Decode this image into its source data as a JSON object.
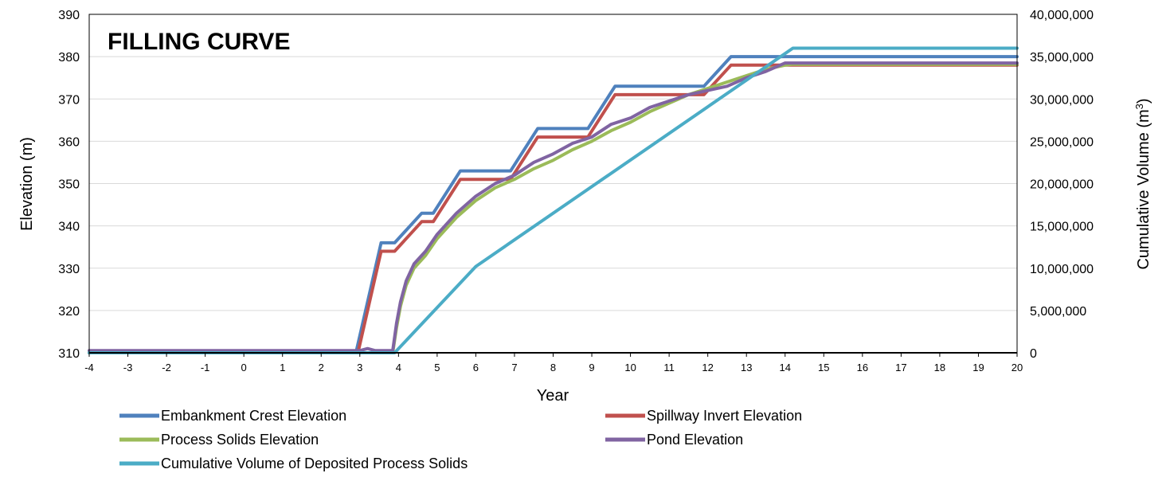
{
  "chart_data": {
    "type": "line",
    "title": "FILLING CURVE",
    "xlabel": "Year",
    "ylabel": "Elevation (m)",
    "y2label": "Cumulative Volume (m",
    "y2label_sup": "3",
    "y2label_end": ")",
    "xlim": [
      -4,
      20
    ],
    "ylim": [
      310,
      390
    ],
    "y2lim": [
      0,
      40000000
    ],
    "x_ticks": [
      "-4",
      "-3",
      "-2",
      "-1",
      "0",
      "1",
      "2",
      "3",
      "4",
      "5",
      "6",
      "7",
      "8",
      "9",
      "10",
      "11",
      "12",
      "13",
      "14",
      "15",
      "16",
      "17",
      "18",
      "19",
      "20"
    ],
    "y_ticks": [
      "310",
      "320",
      "330",
      "340",
      "350",
      "360",
      "370",
      "380",
      "390"
    ],
    "y2_ticks": [
      "0",
      "5,000,000",
      "10,000,000",
      "15,000,000",
      "20,000,000",
      "25,000,000",
      "30,000,000",
      "35,000,000",
      "40,000,000"
    ],
    "grid": "horizontal",
    "legend_position": "bottom",
    "colors": {
      "embankment": "#4f81bd",
      "spillway": "#c0504d",
      "solids": "#9bbb59",
      "pond": "#8064a2",
      "volume": "#4bacc6"
    },
    "series": [
      {
        "name": "Embankment Crest Elevation",
        "key": "embankment",
        "axis": "left",
        "x": [
          -4,
          2.9,
          3.55,
          3.9,
          4.6,
          4.9,
          5.6,
          6.9,
          7.6,
          8.9,
          9.6,
          11.9,
          12.6,
          20
        ],
        "y": [
          310,
          310,
          336,
          336,
          343,
          343,
          353,
          353,
          363,
          363,
          373,
          373,
          380,
          380
        ]
      },
      {
        "name": "Spillway Invert Elevation",
        "key": "spillway",
        "axis": "left",
        "x": [
          -4,
          2.95,
          3.55,
          3.9,
          4.6,
          4.9,
          5.6,
          6.9,
          7.6,
          8.9,
          9.6,
          11.9,
          12.6,
          20
        ],
        "y": [
          310,
          310,
          334,
          334,
          341,
          341,
          351,
          351,
          361,
          361,
          371,
          371,
          378,
          378
        ]
      },
      {
        "name": "Process Solids Elevation",
        "key": "solids",
        "axis": "left",
        "x": [
          -4,
          3.85,
          3.95,
          4.05,
          4.2,
          4.4,
          4.7,
          5.0,
          5.5,
          6.0,
          6.5,
          7.0,
          7.5,
          8.0,
          8.5,
          9.0,
          9.5,
          10.0,
          10.5,
          11.0,
          11.5,
          12.0,
          12.5,
          13.0,
          13.5,
          14.0,
          14.2,
          20
        ],
        "y": [
          310,
          310,
          316,
          321,
          326,
          330,
          333,
          337,
          342,
          346,
          349,
          351,
          353.5,
          355.5,
          358,
          360,
          362.5,
          364.5,
          367,
          369,
          371,
          372.5,
          374,
          375.5,
          377,
          378,
          378.2,
          378.2
        ]
      },
      {
        "name": "Pond Elevation",
        "key": "pond",
        "axis": "left",
        "x": [
          -4,
          3.0,
          3.2,
          3.4,
          3.85,
          3.95,
          4.05,
          4.2,
          4.4,
          4.7,
          5.0,
          5.5,
          6.0,
          6.5,
          7.0,
          7.5,
          8.0,
          8.5,
          9.0,
          9.5,
          10.0,
          10.5,
          11.0,
          11.5,
          12.0,
          12.5,
          13.0,
          13.5,
          14.0,
          14.2,
          20
        ],
        "y": [
          310.5,
          310.5,
          311,
          310.5,
          310.5,
          317,
          322,
          327,
          331,
          334,
          338,
          343,
          347,
          350,
          352,
          355,
          357,
          359.5,
          361,
          364,
          365.5,
          368,
          369.5,
          371,
          372,
          373,
          375,
          376.5,
          378.5,
          378.5,
          378.5
        ]
      },
      {
        "name": "Cumulative Volume of Deposited Process Solids",
        "key": "volume",
        "axis": "right",
        "x": [
          -4,
          3.9,
          6.0,
          14.2,
          20
        ],
        "y": [
          0,
          0,
          10200000,
          36000000,
          36000000
        ]
      }
    ]
  }
}
